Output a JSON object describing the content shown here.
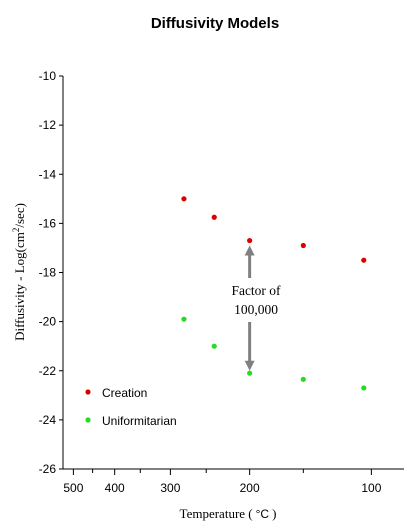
{
  "chart_data": {
    "type": "scatter",
    "title": "Diffusivity Models",
    "xlabel_prefix": "Temperature (",
    "xlabel_unit": "°C",
    "xlabel_suffix": ")",
    "ylabel_prefix": "Diffusivity - Log(cm",
    "ylabel_sup": "2",
    "ylabel_suffix": "/sec)",
    "x_scale": "reciprocal-kelvin",
    "xlim": [
      530,
      80
    ],
    "ylim": [
      -26,
      -10
    ],
    "y_ticks": [
      -10,
      -12,
      -14,
      -16,
      -18,
      -20,
      -22,
      -24,
      -26
    ],
    "y_tick_labels": [
      "-10",
      "-12",
      "-14",
      "-16",
      "-18",
      "-20",
      "-22",
      "-24",
      "-26"
    ],
    "x_ticks_major": [
      500,
      400,
      300,
      200,
      100
    ],
    "x_tick_labels": [
      "500",
      "400",
      "300",
      "200",
      "100"
    ],
    "x_ticks_minor": [
      450,
      350,
      250,
      150
    ],
    "legend_position": "bottom-left",
    "series": [
      {
        "name": "Creation",
        "color": "#dd0000",
        "points": [
          {
            "x": 280,
            "y": -15.0
          },
          {
            "x": 240,
            "y": -15.75
          },
          {
            "x": 200,
            "y": -16.7
          },
          {
            "x": 150,
            "y": -16.9
          },
          {
            "x": 105,
            "y": -17.5
          }
        ]
      },
      {
        "name": "Uniformitarian",
        "color": "#22dd22",
        "points": [
          {
            "x": 280,
            "y": -19.9
          },
          {
            "x": 240,
            "y": -21.0
          },
          {
            "x": 200,
            "y": -22.1
          },
          {
            "x": 150,
            "y": -22.35
          },
          {
            "x": 105,
            "y": -22.7
          }
        ]
      }
    ],
    "annotation": {
      "line1": "Factor of",
      "line2": "100,000",
      "arrow_x": 200,
      "arrow_from_y": -16.9,
      "arrow_to_y": -22.0,
      "arrow_color": "#808080"
    }
  }
}
